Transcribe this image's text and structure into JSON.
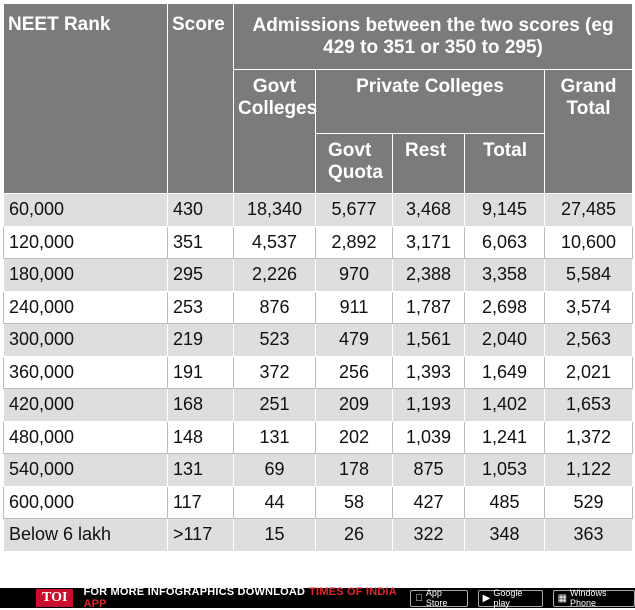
{
  "table": {
    "headers": {
      "rank": "NEET Rank",
      "score": "Score",
      "admissions": "Admissions between the two scores (eg 429 to 351 or 350 to 295)",
      "govt_colleges": "Govt Colleges",
      "private_colleges": "Private Colleges",
      "grand_total": "Grand Total",
      "govt_quota": "Govt Quota",
      "rest": "Rest",
      "total": "Total"
    },
    "rows": [
      {
        "rank": "60,000",
        "score": "430",
        "govt": "18,340",
        "quota": "5,677",
        "rest": "3,468",
        "total": "9,145",
        "grand": "27,485"
      },
      {
        "rank": "120,000",
        "score": "351",
        "govt": "4,537",
        "quota": "2,892",
        "rest": "3,171",
        "total": "6,063",
        "grand": "10,600"
      },
      {
        "rank": "180,000",
        "score": "295",
        "govt": "2,226",
        "quota": "970",
        "rest": "2,388",
        "total": "3,358",
        "grand": "5,584"
      },
      {
        "rank": "240,000",
        "score": "253",
        "govt": "876",
        "quota": "911",
        "rest": "1,787",
        "total": "2,698",
        "grand": "3,574"
      },
      {
        "rank": "300,000",
        "score": "219",
        "govt": "523",
        "quota": "479",
        "rest": "1,561",
        "total": "2,040",
        "grand": "2,563"
      },
      {
        "rank": "360,000",
        "score": "191",
        "govt": "372",
        "quota": "256",
        "rest": "1,393",
        "total": "1,649",
        "grand": "2,021"
      },
      {
        "rank": "420,000",
        "score": "168",
        "govt": "251",
        "quota": "209",
        "rest": "1,193",
        "total": "1,402",
        "grand": "1,653"
      },
      {
        "rank": "480,000",
        "score": "148",
        "govt": "131",
        "quota": "202",
        "rest": "1,039",
        "total": "1,241",
        "grand": "1,372"
      },
      {
        "rank": "540,000",
        "score": "131",
        "govt": "69",
        "quota": "178",
        "rest": "875",
        "total": "1,053",
        "grand": "1,122"
      },
      {
        "rank": "600,000",
        "score": "117",
        "govt": "44",
        "quota": "58",
        "rest": "427",
        "total": "485",
        "grand": "529"
      },
      {
        "rank": "Below 6 lakh",
        "score": ">117",
        "govt": "15",
        "quota": "26",
        "rest": "322",
        "total": "348",
        "grand": "363"
      }
    ]
  },
  "footer": {
    "logo": "TOI",
    "text": "FOR MORE INFOGRAPHICS DOWNLOAD",
    "app_name": "TIMES OF INDIA APP",
    "badges": [
      {
        "icon": "apple-icon",
        "label": "App Store"
      },
      {
        "icon": "google-play-icon",
        "label": "Google play"
      },
      {
        "icon": "windows-icon",
        "label": "Windows Phone"
      }
    ]
  }
}
